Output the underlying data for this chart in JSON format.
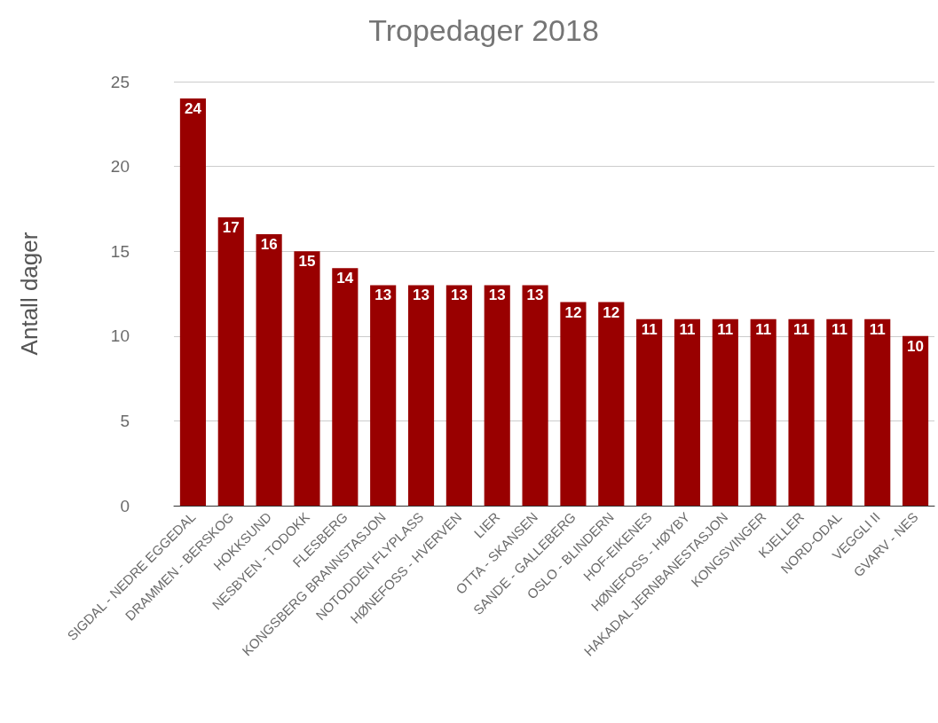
{
  "chart_data": {
    "type": "bar",
    "title": "Tropedager 2018",
    "ylabel": "Antall dager",
    "categories": [
      "SIGDAL - NEDRE EGGEDAL",
      "DRAMMEN - BERSKOG",
      "HOKKSUND",
      "NESBYEN - TODOKK",
      "FLESBERG",
      "KONGSBERG BRANNSTASJON",
      "NOTODDEN FLYPLASS",
      "HØNEFOSS - HVERVEN",
      "LIER",
      "OTTA - SKANSEN",
      "SANDE - GALLEBERG",
      "OSLO - BLINDERN",
      "HOF-EIKENES",
      "HØNEFOSS - HØYBY",
      "HAKADAL JERNBANESTASJON",
      "KONGSVINGER",
      "KJELLER",
      "NORD-ODAL",
      "VEGGLI II",
      "GVARV - NES"
    ],
    "values": [
      24,
      17,
      16,
      15,
      14,
      13,
      13,
      13,
      13,
      13,
      12,
      12,
      11,
      11,
      11,
      11,
      11,
      11,
      11,
      10
    ],
    "color": "#990000",
    "ylim": [
      0,
      25
    ],
    "yticks": [
      0,
      5,
      10,
      15,
      20,
      25
    ],
    "grid": true,
    "data_labels": true
  }
}
